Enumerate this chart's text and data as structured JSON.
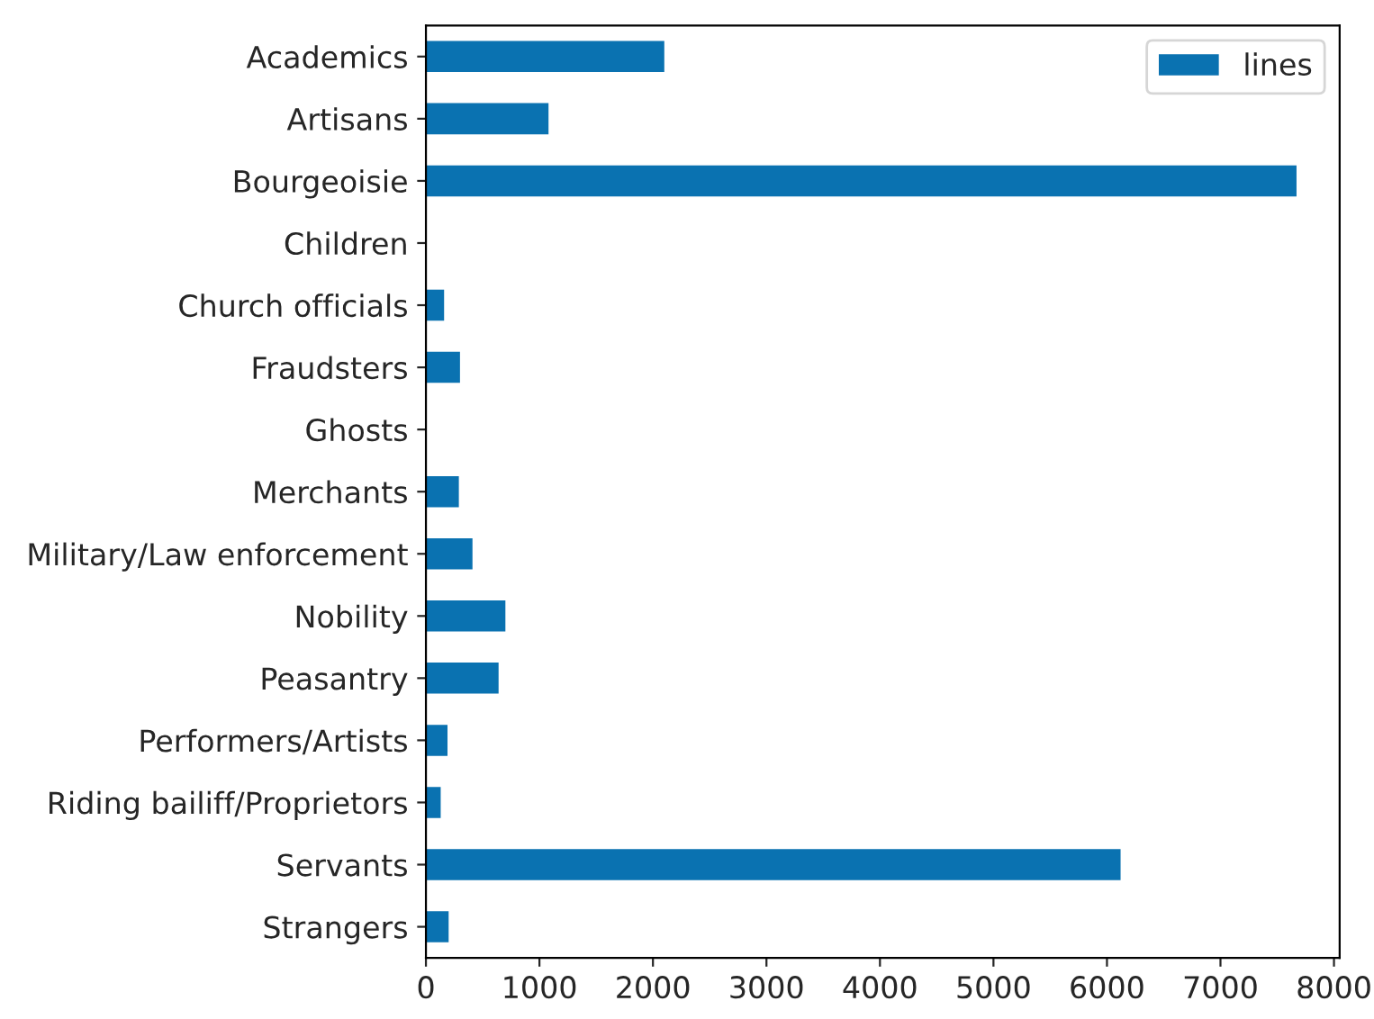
{
  "chart_data": {
    "type": "bar",
    "orientation": "horizontal",
    "categories": [
      "Academics",
      "Artisans",
      "Bourgeoisie",
      "Children",
      "Church officials",
      "Fraudsters",
      "Ghosts",
      "Merchants",
      "Military/Law enforcement",
      "Nobility",
      "Peasantry",
      "Performers/Artists",
      "Riding bailiff/Proprietors",
      "Servants",
      "Strangers"
    ],
    "series": [
      {
        "name": "lines",
        "color": "#0a72b1",
        "values": [
          2100,
          1080,
          7670,
          0,
          160,
          300,
          0,
          290,
          410,
          700,
          640,
          190,
          130,
          6120,
          200
        ]
      }
    ],
    "xlim": [
      0,
      8050
    ],
    "xticks": [
      0,
      1000,
      2000,
      3000,
      4000,
      5000,
      6000,
      7000,
      8000
    ],
    "legend": "top right",
    "grid": false
  }
}
